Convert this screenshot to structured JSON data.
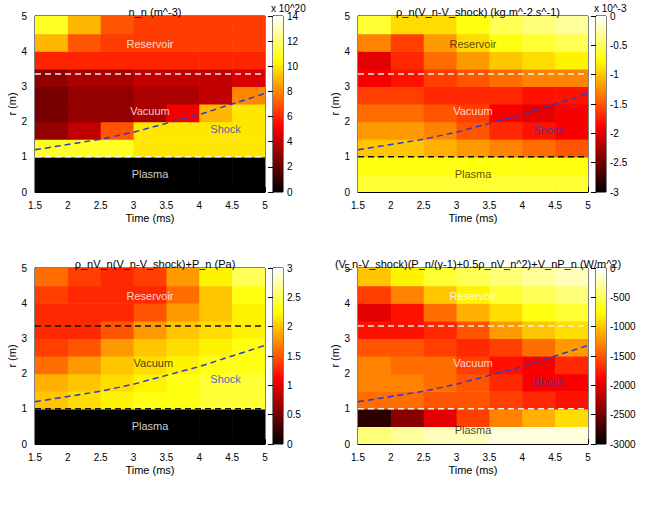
{
  "chart_data": [
    {
      "type": "heatmap",
      "title": "n_n (m^-3)",
      "x_label": "Time (ms)",
      "y_label": "r (m)",
      "xlim": [
        1.5,
        5
      ],
      "xticks": [
        1.5,
        2,
        2.5,
        3,
        3.5,
        4,
        4.5,
        5
      ],
      "ylim": [
        0,
        5
      ],
      "yticks": [
        0,
        1,
        2,
        3,
        4,
        5
      ],
      "cells": {
        "x_bins": [
          1.5,
          2,
          2.5,
          3,
          3.5,
          4,
          4.5,
          5
        ],
        "y_bins": [
          0,
          0.5,
          1,
          1.5,
          2,
          2.5,
          3,
          3.5,
          4,
          4.5,
          5
        ],
        "values": [
          [
            0,
            0,
            0,
            0,
            0,
            0,
            0
          ],
          [
            0,
            0,
            0,
            0,
            0,
            0,
            0
          ],
          [
            11,
            11,
            11,
            10,
            10,
            10,
            10
          ],
          [
            3,
            4,
            7,
            10,
            10,
            10,
            10
          ],
          [
            2.5,
            3,
            3,
            3.5,
            5,
            9,
            10
          ],
          [
            2.5,
            3,
            3,
            3.5,
            3.5,
            4,
            8
          ],
          [
            3,
            3.5,
            3.5,
            4,
            4,
            4,
            4.5
          ],
          [
            6,
            6,
            6,
            6,
            6,
            6,
            6
          ],
          [
            9,
            7,
            6.5,
            6.5,
            6.5,
            6.5,
            6.5
          ],
          [
            11,
            9,
            7,
            6.5,
            6.5,
            6.5,
            6.5
          ]
        ]
      },
      "colorbar": {
        "range": [
          0,
          14
        ],
        "ticks": [
          0,
          2,
          4,
          6,
          8,
          10,
          12,
          14
        ],
        "label": "x 10^20"
      },
      "lines": [
        {
          "x": [
            1.5,
            5
          ],
          "y": [
            3.35,
            3.35
          ],
          "color": "#f0f0f0",
          "line_style": "dashed"
        },
        {
          "x": [
            1.5,
            5
          ],
          "y": [
            1,
            1
          ],
          "color": "#f0f0f0",
          "line_style": "dashed"
        },
        {
          "x": [
            1.5,
            2,
            2.5,
            3,
            3.5,
            4,
            4.5,
            5
          ],
          "y": [
            1.2,
            1.35,
            1.5,
            1.7,
            1.95,
            2.2,
            2.5,
            2.8
          ],
          "color": "#2b3bd0",
          "line_style": "dashed"
        }
      ],
      "annotations": [
        {
          "text": "Reservoir",
          "x": 3.25,
          "y": 4.2,
          "color": "#ffffff"
        },
        {
          "text": "Vacuum",
          "x": 3.25,
          "y": 2.3,
          "color": "#ffffff"
        },
        {
          "text": "Shock",
          "x": 4.4,
          "y": 1.8,
          "color": "#2b3bd0"
        },
        {
          "text": "Plasma",
          "x": 3.25,
          "y": 0.5,
          "color": "#ffffff"
        }
      ]
    },
    {
      "type": "heatmap",
      "title": "ρ_n(V_n-V_shock) (kg.m^-2.s^-1)",
      "x_label": "Time (ms)",
      "y_label": "r (m)",
      "xlim": [
        1.5,
        5
      ],
      "xticks": [
        1.5,
        2,
        2.5,
        3,
        3.5,
        4,
        4.5,
        5
      ],
      "ylim": [
        0,
        5
      ],
      "yticks": [
        0,
        1,
        2,
        3,
        4,
        5
      ],
      "cells": {
        "x_bins": [
          1.5,
          2,
          2.5,
          3,
          3.5,
          4,
          4.5,
          5
        ],
        "y_bins": [
          0,
          0.5,
          1,
          1.5,
          2,
          2.5,
          3,
          3.5,
          4,
          4.5,
          5
        ],
        "values": [
          [
            -0.6,
            -0.6,
            -0.6,
            -0.6,
            -0.6,
            -0.6,
            -0.6
          ],
          [
            -0.7,
            -0.7,
            -0.7,
            -0.7,
            -0.7,
            -0.7,
            -0.7
          ],
          [
            -1.0,
            -1.0,
            -1.1,
            -1.2,
            -1.3,
            -1.4,
            -1.5
          ],
          [
            -1.2,
            -1.2,
            -1.3,
            -1.5,
            -1.7,
            -1.8,
            -1.9
          ],
          [
            -1.4,
            -1.4,
            -1.5,
            -1.6,
            -1.9,
            -2.0,
            -1.9
          ],
          [
            -1.6,
            -1.6,
            -1.7,
            -1.7,
            -1.7,
            -1.8,
            -1.8
          ],
          [
            -1.9,
            -1.8,
            -1.6,
            -1.5,
            -1.4,
            -1.3,
            -1.3
          ],
          [
            -2.0,
            -1.7,
            -1.4,
            -1.2,
            -1.0,
            -0.9,
            -0.8
          ],
          [
            -1.3,
            -1.6,
            -1.2,
            -0.9,
            -0.7,
            -0.6,
            -0.5
          ],
          [
            -0.6,
            -0.9,
            -0.9,
            -0.7,
            -0.5,
            -0.4,
            -0.3
          ]
        ]
      },
      "colorbar": {
        "range": [
          -3,
          0
        ],
        "ticks": [
          -3,
          -2.5,
          -2,
          -1.5,
          -1,
          -0.5,
          0
        ],
        "label": "x 10^-3"
      },
      "lines": [
        {
          "x": [
            1.5,
            5
          ],
          "y": [
            3.35,
            3.35
          ],
          "color": "#f0f0f0",
          "line_style": "dashed"
        },
        {
          "x": [
            1.5,
            5
          ],
          "y": [
            1,
            1
          ],
          "color": "#111111",
          "line_style": "dashed"
        },
        {
          "x": [
            1.5,
            2,
            2.5,
            3,
            3.5,
            4,
            4.5,
            5
          ],
          "y": [
            1.2,
            1.35,
            1.5,
            1.7,
            1.95,
            2.2,
            2.5,
            2.8
          ],
          "color": "#2b3bd0",
          "line_style": "dashed"
        }
      ],
      "annotations": [
        {
          "text": "Reservoir",
          "x": 3.25,
          "y": 4.2,
          "color": "#3a1a00"
        },
        {
          "text": "Vacuum",
          "x": 3.25,
          "y": 2.3,
          "color": "#ffffff"
        },
        {
          "text": "Shock",
          "x": 4.4,
          "y": 1.75,
          "color": "#2b3bd0"
        },
        {
          "text": "Plasma",
          "x": 3.25,
          "y": 0.5,
          "color": "#3a1a00"
        }
      ]
    },
    {
      "type": "heatmap",
      "title": "ρ_nV_n(V_n-V_shock)+P_n (Pa)",
      "x_label": "Time (ms)",
      "y_label": "r (m)",
      "xlim": [
        1.5,
        5
      ],
      "xticks": [
        1.5,
        2,
        2.5,
        3,
        3.5,
        4,
        4.5,
        5
      ],
      "ylim": [
        0,
        5
      ],
      "yticks": [
        0,
        1,
        2,
        3,
        4,
        5
      ],
      "cells": {
        "x_bins": [
          1.5,
          2,
          2.5,
          3,
          3.5,
          4,
          4.5,
          5
        ],
        "y_bins": [
          0,
          0.5,
          1,
          1.5,
          2,
          2.5,
          3,
          3.5,
          4,
          4.5,
          5
        ],
        "values": [
          [
            0,
            0,
            0,
            0,
            0,
            0,
            0
          ],
          [
            0,
            0,
            0,
            0,
            0,
            0,
            0
          ],
          [
            2.0,
            2.1,
            2.2,
            2.3,
            2.3,
            2.4,
            2.4
          ],
          [
            1.9,
            2.0,
            2.1,
            2.2,
            2.3,
            2.4,
            2.4
          ],
          [
            1.6,
            1.8,
            2.0,
            2.1,
            2.2,
            2.3,
            2.3
          ],
          [
            1.4,
            1.5,
            1.8,
            2.0,
            2.1,
            2.2,
            2.3
          ],
          [
            1.3,
            1.3,
            1.5,
            1.8,
            2.0,
            2.1,
            2.2
          ],
          [
            1.3,
            1.3,
            1.3,
            1.5,
            1.8,
            2.0,
            2.2
          ],
          [
            1.4,
            1.3,
            1.3,
            1.3,
            1.6,
            2.0,
            2.3
          ],
          [
            1.6,
            1.4,
            1.3,
            1.4,
            1.8,
            2.2,
            2.5
          ]
        ]
      },
      "colorbar": {
        "range": [
          0,
          3
        ],
        "ticks": [
          0,
          0.5,
          1,
          1.5,
          2,
          2.5,
          3
        ]
      },
      "lines": [
        {
          "x": [
            1.5,
            5
          ],
          "y": [
            3.35,
            3.35
          ],
          "color": "#111111",
          "line_style": "dashed"
        },
        {
          "x": [
            1.5,
            5
          ],
          "y": [
            1,
            1
          ],
          "color": "#111111",
          "line_style": "dashed"
        },
        {
          "x": [
            1.5,
            2,
            2.5,
            3,
            3.5,
            4,
            4.5,
            5
          ],
          "y": [
            1.2,
            1.35,
            1.5,
            1.7,
            1.95,
            2.2,
            2.5,
            2.8
          ],
          "color": "#2b3bd0",
          "line_style": "dashed"
        }
      ],
      "annotations": [
        {
          "text": "Reservoir",
          "x": 3.25,
          "y": 4.2,
          "color": "#ffffff"
        },
        {
          "text": "Vacuum",
          "x": 3.3,
          "y": 2.3,
          "color": "#111111"
        },
        {
          "text": "Shock",
          "x": 4.4,
          "y": 1.85,
          "color": "#2b3bd0"
        },
        {
          "text": "Plasma",
          "x": 3.25,
          "y": 0.5,
          "color": "#ffffff"
        }
      ]
    },
    {
      "type": "heatmap",
      "title": "(V_n-V_shock)(P_n/(γ-1)+0.5ρ_nV_n^2)+V_nP_n (W/m^2)",
      "x_label": "Time (ms)",
      "y_label": "r (m)",
      "xlim": [
        1.5,
        5
      ],
      "xticks": [
        1.5,
        2,
        2.5,
        3,
        3.5,
        4,
        4.5,
        5
      ],
      "ylim": [
        0,
        5
      ],
      "yticks": [
        0,
        1,
        2,
        3,
        4,
        5
      ],
      "cells": {
        "x_bins": [
          1.5,
          2,
          2.5,
          3,
          3.5,
          4,
          4.5,
          5
        ],
        "y_bins": [
          0,
          0.5,
          1,
          1.5,
          2,
          2.5,
          3,
          3.5,
          4,
          4.5,
          5
        ],
        "values": [
          [
            -400,
            -300,
            -200,
            -200,
            -100,
            -100,
            -100
          ],
          [
            -2800,
            -2400,
            -2000,
            -1600,
            -1300,
            -1100,
            -900
          ],
          [
            -1400,
            -1400,
            -1500,
            -1500,
            -1600,
            -1700,
            -1800
          ],
          [
            -1300,
            -1300,
            -1400,
            -1500,
            -1700,
            -1900,
            -1900
          ],
          [
            -1300,
            -1400,
            -1400,
            -1600,
            -1800,
            -1900,
            -1700
          ],
          [
            -1500,
            -1500,
            -1600,
            -1700,
            -1600,
            -1400,
            -1200
          ],
          [
            -1800,
            -1800,
            -1700,
            -1500,
            -1200,
            -1000,
            -900
          ],
          [
            -2000,
            -1800,
            -1400,
            -1100,
            -900,
            -700,
            -600
          ],
          [
            -1600,
            -1300,
            -1000,
            -800,
            -600,
            -500,
            -400
          ],
          [
            -1000,
            -800,
            -600,
            -500,
            -400,
            -300,
            -200
          ]
        ]
      },
      "colorbar": {
        "range": [
          -3000,
          0
        ],
        "ticks": [
          -3000,
          -2500,
          -2000,
          -1500,
          -1000,
          -500,
          0
        ]
      },
      "lines": [
        {
          "x": [
            1.5,
            5
          ],
          "y": [
            3.35,
            3.35
          ],
          "color": "#f0f0f0",
          "line_style": "dashed"
        },
        {
          "x": [
            1.5,
            5
          ],
          "y": [
            1,
            1
          ],
          "color": "#f0f0f0",
          "line_style": "dashed"
        },
        {
          "x": [
            1.5,
            2,
            2.5,
            3,
            3.5,
            4,
            4.5,
            5
          ],
          "y": [
            1.2,
            1.35,
            1.5,
            1.7,
            1.95,
            2.2,
            2.5,
            2.8
          ],
          "color": "#2b3bd0",
          "line_style": "dashed"
        }
      ],
      "annotations": [
        {
          "text": "Reservoir",
          "x": 3.25,
          "y": 4.2,
          "color": "#ffffff"
        },
        {
          "text": "Vacuum",
          "x": 3.25,
          "y": 2.3,
          "color": "#ffffff"
        },
        {
          "text": "Shock",
          "x": 4.4,
          "y": 1.8,
          "color": "#2b3bd0"
        },
        {
          "text": "Plasma",
          "x": 3.25,
          "y": 0.4,
          "color": "#111111"
        }
      ]
    }
  ]
}
